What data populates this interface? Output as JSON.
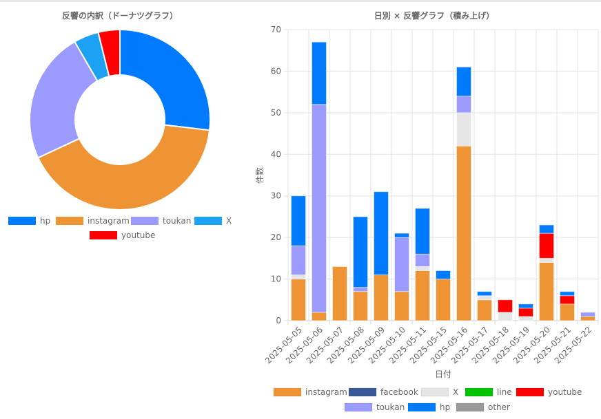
{
  "chart_data": [
    {
      "type": "pie",
      "title": "反響の内訳（ドーナツグラフ）",
      "labels": [
        "hp",
        "instagram",
        "toukan",
        "X",
        "youtube"
      ],
      "values": [
        90,
        138,
        79,
        15,
        13
      ],
      "colors": [
        "#007bff",
        "#ef9434",
        "#9b9bff",
        "#1da1f2",
        "#ff0000"
      ],
      "donut": true,
      "legend": "bottom"
    },
    {
      "type": "bar",
      "stacked": true,
      "title": "日別 × 反響グラフ（積み上げ）",
      "xlabel": "日付",
      "ylabel": "件数",
      "ylim": [
        0,
        70
      ],
      "yticks": [
        0,
        10,
        20,
        30,
        40,
        50,
        60,
        70
      ],
      "grid": true,
      "legend": "bottom",
      "categories": [
        "2025-05-05",
        "2025-05-06",
        "2025-05-07",
        "2025-05-08",
        "2025-05-09",
        "2025-05-10",
        "2025-05-11",
        "2025-05-15",
        "2025-05-16",
        "2025-05-17",
        "2025-05-18",
        "2025-05-19",
        "2025-05-20",
        "2025-05-21",
        "2025-05-22"
      ],
      "series": [
        {
          "name": "instagram",
          "color": "#ef9434",
          "values": [
            10,
            2,
            13,
            7,
            11,
            7,
            12,
            10,
            42,
            5,
            0,
            0,
            14,
            4,
            1
          ]
        },
        {
          "name": "facebook",
          "color": "#3b5998",
          "values": [
            0,
            0,
            0,
            0,
            0,
            0,
            0,
            0,
            0,
            0,
            0,
            0,
            0,
            0,
            0
          ]
        },
        {
          "name": "X",
          "color": "#e5e5e5",
          "values": [
            1,
            0,
            0,
            0,
            0,
            0,
            1,
            0,
            8,
            1,
            2,
            1,
            1,
            0,
            0
          ]
        },
        {
          "name": "line",
          "color": "#00c300",
          "values": [
            0,
            0,
            0,
            0,
            0,
            0,
            0,
            0,
            0,
            0,
            0,
            0,
            0,
            0,
            0
          ]
        },
        {
          "name": "youtube",
          "color": "#ff0000",
          "values": [
            0,
            0,
            0,
            0,
            0,
            0,
            0,
            0,
            0,
            0,
            3,
            2,
            6,
            2,
            0
          ]
        },
        {
          "name": "toukan",
          "color": "#9b9bff",
          "values": [
            7,
            50,
            0,
            1,
            0,
            13,
            3,
            0,
            4,
            0,
            0,
            0,
            0,
            0,
            1
          ]
        },
        {
          "name": "hp",
          "color": "#007bff",
          "values": [
            12,
            15,
            0,
            17,
            20,
            1,
            11,
            2,
            7,
            1,
            0,
            1,
            2,
            1,
            0
          ]
        },
        {
          "name": "other",
          "color": "#999999",
          "values": [
            0,
            0,
            0,
            0,
            0,
            0,
            0,
            0,
            0,
            0,
            0,
            0,
            0,
            0,
            0
          ]
        }
      ]
    }
  ]
}
